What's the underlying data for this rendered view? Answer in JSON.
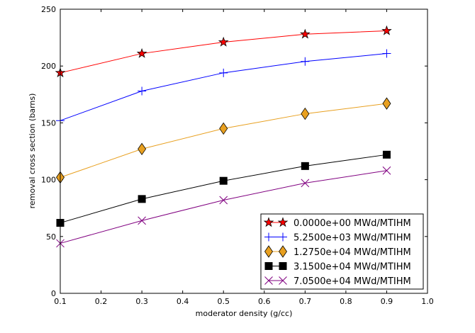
{
  "chart_data": {
    "type": "line",
    "title": "",
    "xlabel": "moderator density (g/cc)",
    "ylabel": "removal cross section (barns)",
    "xlim": [
      0.1,
      1.0
    ],
    "ylim": [
      0,
      250
    ],
    "xticks": [
      "0.1",
      "0.2",
      "0.3",
      "0.4",
      "0.5",
      "0.6",
      "0.7",
      "0.8",
      "0.9",
      "1.0"
    ],
    "yticks": [
      "0",
      "50",
      "100",
      "150",
      "200",
      "250"
    ],
    "grid": false,
    "legend_position": "bottom-right",
    "x": [
      0.1,
      0.3,
      0.5,
      0.7,
      0.9
    ],
    "series": [
      {
        "name": "0.0000e+00 MWd/MTIHM",
        "color": "#ff0000",
        "marker": "star",
        "values": [
          194,
          211,
          221,
          228,
          231
        ]
      },
      {
        "name": "5.2500e+03 MWd/MTIHM",
        "color": "#0000ff",
        "marker": "plus",
        "values": [
          152,
          178,
          194,
          204,
          211
        ]
      },
      {
        "name": "1.2750e+04 MWd/MTIHM",
        "color": "#e8a020",
        "marker": "diamond",
        "values": [
          102,
          127,
          145,
          158,
          167
        ]
      },
      {
        "name": "3.1500e+04 MWd/MTIHM",
        "color": "#000000",
        "marker": "square",
        "values": [
          62,
          83,
          99,
          112,
          122
        ]
      },
      {
        "name": "7.0500e+04 MWd/MTIHM",
        "color": "#800080",
        "marker": "x",
        "values": [
          44,
          64,
          82,
          97,
          108
        ]
      }
    ]
  }
}
